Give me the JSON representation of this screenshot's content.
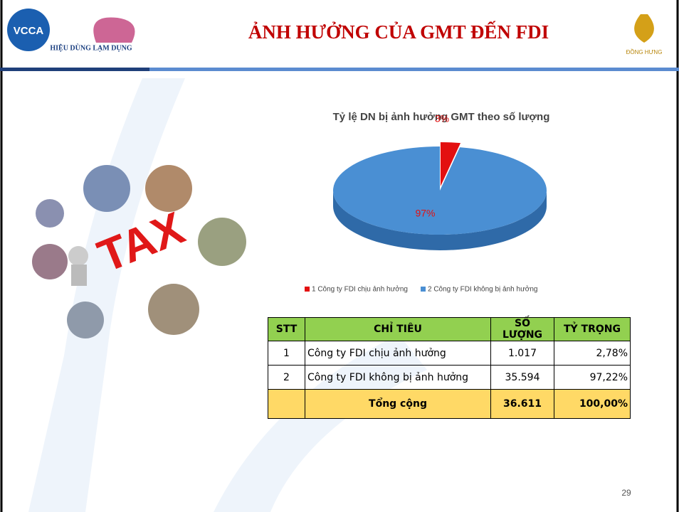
{
  "header": {
    "title": "ẢNH HƯỞNG CỦA GMT ĐẾN FDI",
    "logo_left": "VCCA",
    "logo_middle": "HIỆU DÙNG LẠM DỤNG",
    "logo_right": "ĐỒNG HƯNG"
  },
  "illustration": {
    "text": "TAX"
  },
  "chart_data": {
    "type": "pie",
    "title": "Tỷ lệ DN bị ảnh hưởng GMT theo số lượng",
    "categories": [
      "1 Công ty FDI chịu ảnh hưởng",
      "2 Công ty FDI không bị ảnh hưởng"
    ],
    "values": [
      3,
      97
    ],
    "value_labels": [
      "3%",
      "97%"
    ],
    "colors": [
      "#e31010",
      "#4a8fd3"
    ],
    "legend": "bottom"
  },
  "table": {
    "header": [
      "STT",
      "CHỈ TIÊU",
      "SỐ LƯỢNG",
      "TỶ TRỌNG"
    ],
    "rows": [
      [
        "1",
        "Công ty FDI chịu ảnh hưởng",
        "1.017",
        "2,78%"
      ],
      [
        "2",
        "Công ty FDI không bị ảnh hưởng",
        "35.594",
        "97,22%"
      ],
      [
        "",
        "Tổng cộng",
        "36.611",
        "100,00%"
      ]
    ]
  },
  "footer": {
    "page_number": "29"
  }
}
